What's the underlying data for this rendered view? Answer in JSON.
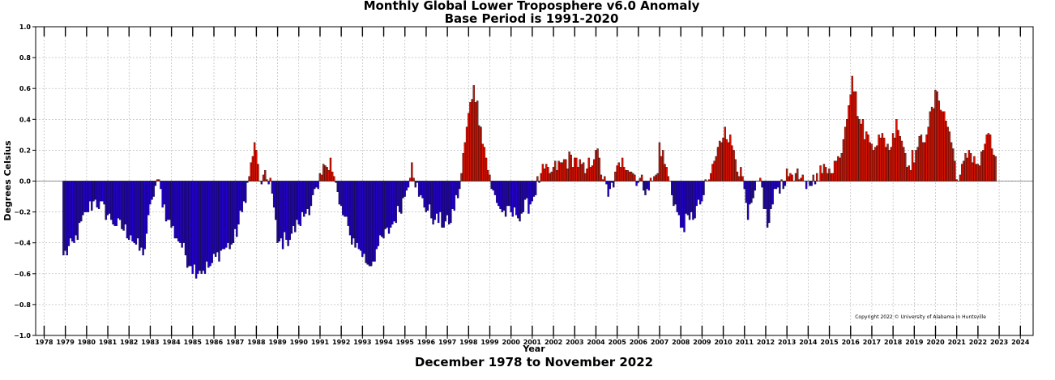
{
  "chart_data": {
    "type": "bar",
    "title": "Monthly Global Lower Troposphere v6.0 Anomaly",
    "subtitle": "Base Period is 1991-2020",
    "xlabel": "Year",
    "ylabel": "Degrees Celsius",
    "bottom_caption": "December 1978 to November 2022",
    "copyright": "Copyright 2022 © University of Alabama in Huntsville",
    "ylim": [
      -1.0,
      1.0
    ],
    "xlim": [
      1977.6,
      2024.6
    ],
    "y_ticks": [
      "1.0",
      "0.8",
      "0.6",
      "0.4",
      "0.2",
      "0.0",
      "−0.2",
      "−0.4",
      "−0.6",
      "−0.8",
      "−1.0"
    ],
    "y_tick_values": [
      1.0,
      0.8,
      0.6,
      0.4,
      0.2,
      0.0,
      -0.2,
      -0.4,
      -0.6,
      -0.8,
      -1.0
    ],
    "x_ticks": [
      "1978",
      "1979",
      "1980",
      "1981",
      "1982",
      "1983",
      "1984",
      "1985",
      "1986",
      "1987",
      "1988",
      "1989",
      "1990",
      "1991",
      "1992",
      "1993",
      "1994",
      "1995",
      "1996",
      "1997",
      "1998",
      "1999",
      "2000",
      "2001",
      "2002",
      "2003",
      "2004",
      "2005",
      "2006",
      "2007",
      "2008",
      "2009",
      "2010",
      "2011",
      "2012",
      "2013",
      "2014",
      "2015",
      "2016",
      "2017",
      "2018",
      "2019",
      "2020",
      "2021",
      "2022",
      "2023",
      "2024"
    ],
    "grid": true,
    "start": "1978-12",
    "end": "2022-11",
    "positive_color": "#dd1100",
    "negative_color": "#2200cc",
    "anchors": [
      [
        "1978-12",
        -0.48
      ],
      [
        "1979-06",
        -0.4
      ],
      [
        "1980-01",
        -0.2
      ],
      [
        "1980-06",
        -0.12
      ],
      [
        "1981-03",
        -0.25
      ],
      [
        "1982-02",
        -0.35
      ],
      [
        "1982-09",
        -0.48
      ],
      [
        "1983-02",
        -0.12
      ],
      [
        "1983-05",
        0.01
      ],
      [
        "1983-11",
        -0.25
      ],
      [
        "1984-06",
        -0.4
      ],
      [
        "1984-12",
        -0.55
      ],
      [
        "1985-05",
        -0.58
      ],
      [
        "1985-11",
        -0.55
      ],
      [
        "1986-05",
        -0.45
      ],
      [
        "1986-12",
        -0.4
      ],
      [
        "1987-05",
        -0.2
      ],
      [
        "1987-09",
        0.03
      ],
      [
        "1987-12",
        0.25
      ],
      [
        "1988-03",
        0.0
      ],
      [
        "1988-09",
        0.02
      ],
      [
        "1989-01",
        -0.4
      ],
      [
        "1989-06",
        -0.38
      ],
      [
        "1990-01",
        -0.28
      ],
      [
        "1990-06",
        -0.18
      ],
      [
        "1990-12",
        -0.05
      ],
      [
        "1991-04",
        0.1
      ],
      [
        "1991-07",
        0.15
      ],
      [
        "1991-12",
        -0.15
      ],
      [
        "1992-06",
        -0.35
      ],
      [
        "1992-12",
        -0.45
      ],
      [
        "1993-05",
        -0.55
      ],
      [
        "1993-10",
        -0.42
      ],
      [
        "1994-06",
        -0.28
      ],
      [
        "1995-01",
        -0.1
      ],
      [
        "1995-05",
        0.12
      ],
      [
        "1995-09",
        -0.1
      ],
      [
        "1996-06",
        -0.25
      ],
      [
        "1997-02",
        -0.28
      ],
      [
        "1997-08",
        -0.05
      ],
      [
        "1997-12",
        0.35
      ],
      [
        "1998-04",
        0.62
      ],
      [
        "1998-08",
        0.35
      ],
      [
        "1999-02",
        -0.05
      ],
      [
        "1999-08",
        -0.2
      ],
      [
        "2000-04",
        -0.22
      ],
      [
        "2000-12",
        -0.15
      ],
      [
        "2001-06",
        0.05
      ],
      [
        "2001-12",
        0.06
      ],
      [
        "2002-06",
        0.12
      ],
      [
        "2003-01",
        0.15
      ],
      [
        "2003-07",
        0.05
      ],
      [
        "2004-01",
        0.2
      ],
      [
        "2004-08",
        -0.1
      ],
      [
        "2005-04",
        0.15
      ],
      [
        "2005-10",
        0.05
      ],
      [
        "2006-06",
        -0.05
      ],
      [
        "2006-12",
        0.05
      ],
      [
        "2007-01",
        0.25
      ],
      [
        "2007-06",
        0.03
      ],
      [
        "2008-01",
        -0.3
      ],
      [
        "2008-06",
        -0.25
      ],
      [
        "2008-12",
        -0.15
      ],
      [
        "2009-06",
        0.05
      ],
      [
        "2010-02",
        0.35
      ],
      [
        "2010-07",
        0.2
      ],
      [
        "2011-01",
        -0.05
      ],
      [
        "2011-03",
        -0.25
      ],
      [
        "2011-10",
        0.02
      ],
      [
        "2012-02",
        -0.3
      ],
      [
        "2012-07",
        -0.05
      ],
      [
        "2013-03",
        0.05
      ],
      [
        "2013-06",
        0.05
      ],
      [
        "2013-12",
        -0.05
      ],
      [
        "2014-06",
        0.05
      ],
      [
        "2015-01",
        0.08
      ],
      [
        "2015-07",
        0.15
      ],
      [
        "2016-02",
        0.68
      ],
      [
        "2016-06",
        0.4
      ],
      [
        "2016-12",
        0.25
      ],
      [
        "2017-06",
        0.28
      ],
      [
        "2017-12",
        0.22
      ],
      [
        "2018-03",
        0.4
      ],
      [
        "2018-10",
        0.1
      ],
      [
        "2019-03",
        0.22
      ],
      [
        "2019-09",
        0.35
      ],
      [
        "2020-02",
        0.58
      ],
      [
        "2020-09",
        0.32
      ],
      [
        "2021-02",
        0.0
      ],
      [
        "2021-08",
        0.2
      ],
      [
        "2022-02",
        0.1
      ],
      [
        "2022-06",
        0.3
      ],
      [
        "2022-11",
        0.16
      ]
    ],
    "noise_amplitude": 0.06
  }
}
